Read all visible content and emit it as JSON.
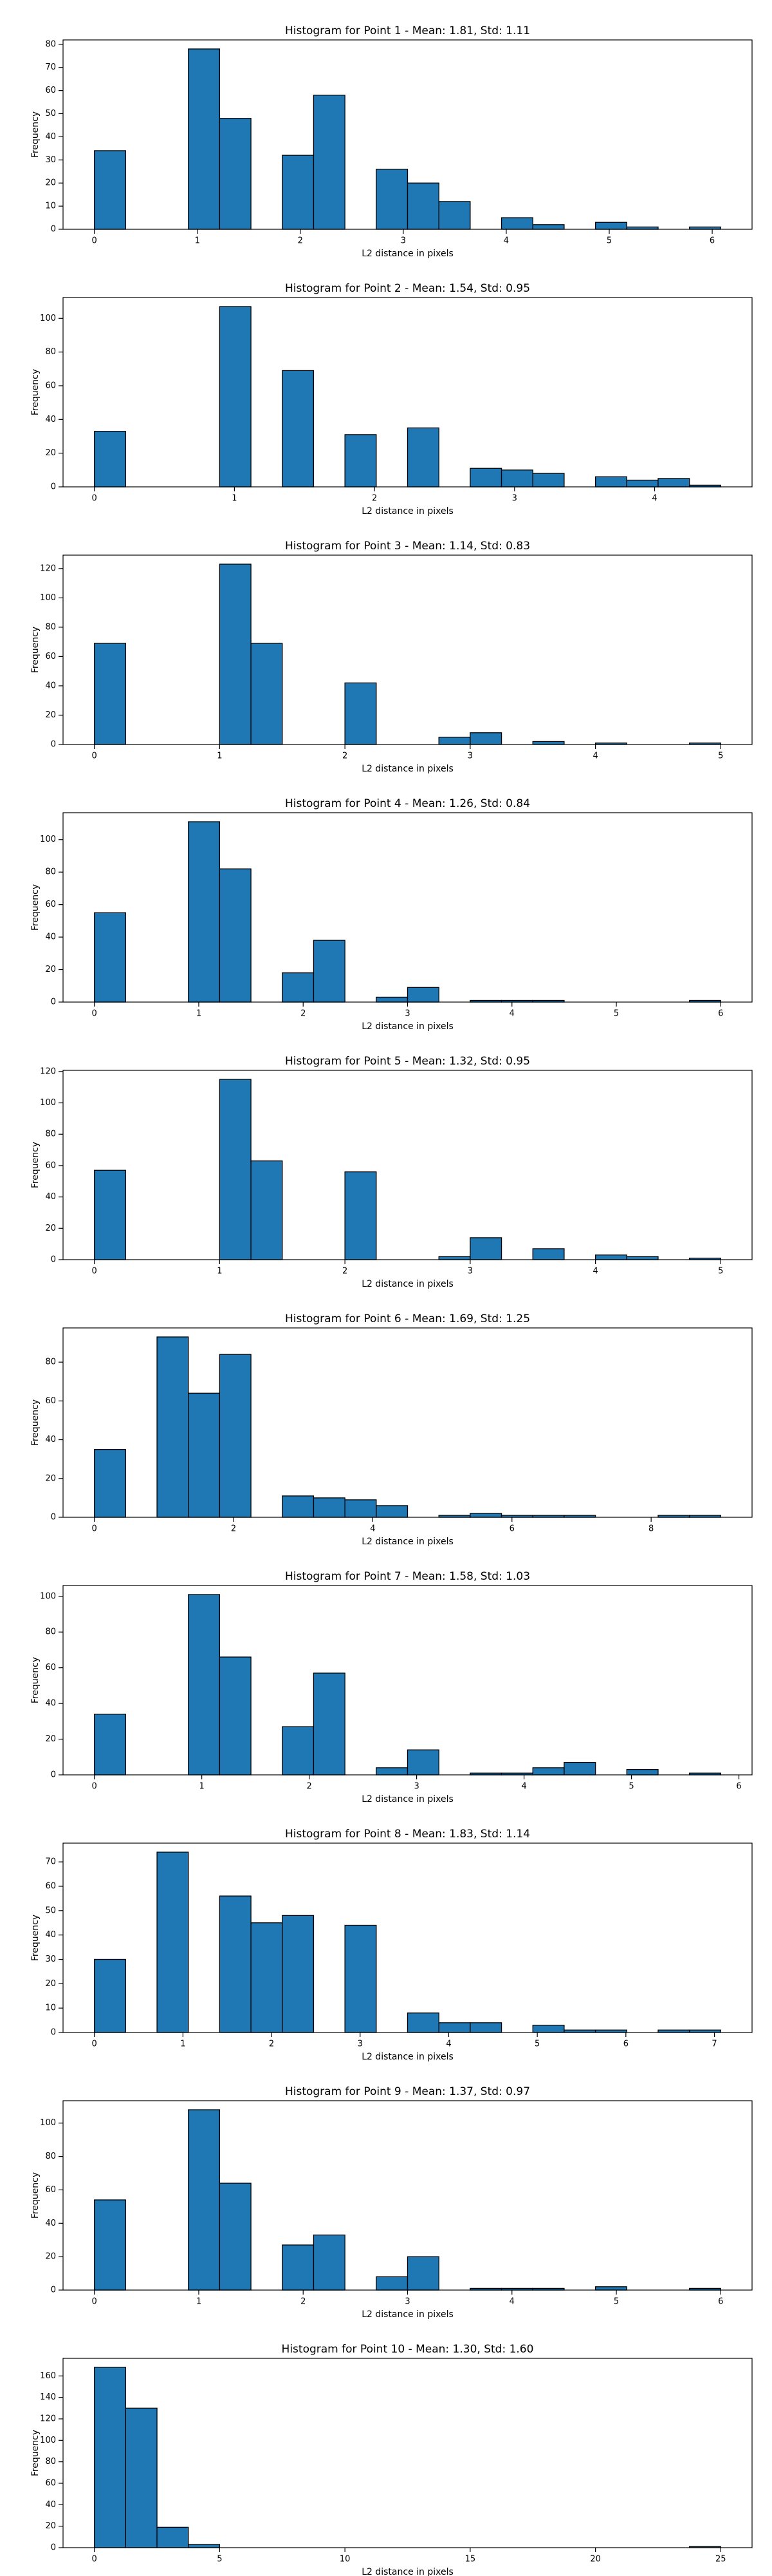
{
  "chart_data": [
    {
      "type": "histogram",
      "title": "Histogram for Point 1 - Mean: 1.81, Std: 1.11",
      "x_label": "L2 distance in pixels",
      "y_label": "Frequency",
      "color": "#1f77b4",
      "edge_color": "#000000",
      "bins": [
        0,
        0.3041,
        0.6083,
        0.9124,
        1.2166,
        1.5207,
        1.8248,
        2.129,
        2.4331,
        2.7373,
        3.0414,
        3.3455,
        3.6497,
        3.9538,
        4.258,
        4.5621,
        4.8662,
        5.1704,
        5.4745,
        5.7787,
        6.0828
      ],
      "values": [
        34,
        0,
        0,
        78,
        48,
        0,
        32,
        58,
        0,
        26,
        20,
        12,
        0,
        5,
        2,
        0,
        3,
        1,
        0,
        1
      ],
      "xlim": [
        -0.3041,
        6.3869
      ],
      "xticks": [
        0,
        1,
        2,
        3,
        4,
        5,
        6
      ],
      "ylim": [
        0,
        81.9
      ],
      "yticks": [
        0,
        10,
        20,
        30,
        40,
        50,
        60,
        70,
        80
      ]
    },
    {
      "type": "histogram",
      "title": "Histogram for Point 2 - Mean: 1.54, Std: 0.95",
      "x_label": "L2 distance in pixels",
      "y_label": "Frequency",
      "color": "#1f77b4",
      "edge_color": "#000000",
      "bins": [
        0,
        0.2236,
        0.4472,
        0.6708,
        0.8944,
        1.118,
        1.3416,
        1.5652,
        1.7889,
        2.0125,
        2.2361,
        2.4597,
        2.6833,
        2.9069,
        3.1305,
        3.3541,
        3.5777,
        3.8013,
        4.0249,
        4.2485,
        4.4721
      ],
      "values": [
        33,
        0,
        0,
        0,
        107,
        0,
        69,
        0,
        31,
        0,
        35,
        0,
        11,
        10,
        8,
        0,
        6,
        4,
        5,
        1
      ],
      "xlim": [
        -0.2236,
        4.6957
      ],
      "xticks": [
        0,
        1,
        2,
        3,
        4
      ],
      "ylim": [
        0,
        112.35
      ],
      "yticks": [
        0,
        20,
        40,
        60,
        80,
        100
      ]
    },
    {
      "type": "histogram",
      "title": "Histogram for Point 3 - Mean: 1.14, Std: 0.83",
      "x_label": "L2 distance in pixels",
      "y_label": "Frequency",
      "color": "#1f77b4",
      "edge_color": "#000000",
      "bins": [
        0,
        0.25,
        0.5,
        0.75,
        1,
        1.25,
        1.5,
        1.75,
        2,
        2.25,
        2.5,
        2.75,
        3,
        3.25,
        3.5,
        3.75,
        4,
        4.25,
        4.5,
        4.75,
        5
      ],
      "values": [
        69,
        0,
        0,
        0,
        123,
        69,
        0,
        0,
        42,
        0,
        0,
        5,
        8,
        0,
        2,
        0,
        1,
        0,
        0,
        1
      ],
      "xlim": [
        -0.25,
        5.25
      ],
      "xticks": [
        0,
        1,
        2,
        3,
        4,
        5
      ],
      "ylim": [
        0,
        129.15
      ],
      "yticks": [
        0,
        20,
        40,
        60,
        80,
        100,
        120
      ]
    },
    {
      "type": "histogram",
      "title": "Histogram for Point 4 - Mean: 1.26, Std: 0.84",
      "x_label": "L2 distance in pixels",
      "y_label": "Frequency",
      "color": "#1f77b4",
      "edge_color": "#000000",
      "bins": [
        0,
        0.3,
        0.6,
        0.9,
        1.2,
        1.5,
        1.8,
        2.1,
        2.4,
        2.7,
        3,
        3.3,
        3.6,
        3.9,
        4.2,
        4.5,
        4.8,
        5.1,
        5.4,
        5.7,
        6
      ],
      "values": [
        55,
        0,
        0,
        111,
        82,
        0,
        18,
        38,
        0,
        3,
        9,
        0,
        1,
        1,
        1,
        0,
        0,
        0,
        0,
        1
      ],
      "xlim": [
        -0.3,
        6.3
      ],
      "xticks": [
        0,
        1,
        2,
        3,
        4,
        5,
        6
      ],
      "ylim": [
        0,
        116.55
      ],
      "yticks": [
        0,
        20,
        40,
        60,
        80,
        100
      ]
    },
    {
      "type": "histogram",
      "title": "Histogram for Point 5 - Mean: 1.32, Std: 0.95",
      "x_label": "L2 distance in pixels",
      "y_label": "Frequency",
      "color": "#1f77b4",
      "edge_color": "#000000",
      "bins": [
        0,
        0.25,
        0.5,
        0.75,
        1,
        1.25,
        1.5,
        1.75,
        2,
        2.25,
        2.5,
        2.75,
        3,
        3.25,
        3.5,
        3.75,
        4,
        4.25,
        4.5,
        4.75,
        5
      ],
      "values": [
        57,
        0,
        0,
        0,
        115,
        63,
        0,
        0,
        56,
        0,
        0,
        2,
        14,
        0,
        7,
        0,
        3,
        2,
        0,
        1
      ],
      "xlim": [
        -0.25,
        5.25
      ],
      "xticks": [
        0,
        1,
        2,
        3,
        4,
        5
      ],
      "ylim": [
        0,
        120.75
      ],
      "yticks": [
        0,
        20,
        40,
        60,
        80,
        100,
        120
      ]
    },
    {
      "type": "histogram",
      "title": "Histogram for Point 6 - Mean: 1.69, Std: 1.25",
      "x_label": "L2 distance in pixels",
      "y_label": "Frequency",
      "color": "#1f77b4",
      "edge_color": "#000000",
      "bins": [
        0,
        0.45,
        0.9,
        1.35,
        1.8,
        2.25,
        2.7,
        3.15,
        3.6,
        4.05,
        4.5,
        4.95,
        5.4,
        5.85,
        6.3,
        6.75,
        7.2,
        7.65,
        8.1,
        8.55,
        9
      ],
      "values": [
        35,
        0,
        93,
        64,
        84,
        0,
        11,
        10,
        9,
        6,
        0,
        1,
        2,
        1,
        1,
        1,
        0,
        0,
        1,
        1
      ],
      "xlim": [
        -0.45,
        9.45
      ],
      "xticks": [
        0,
        2,
        4,
        6,
        8
      ],
      "ylim": [
        0,
        97.65
      ],
      "yticks": [
        0,
        20,
        40,
        60,
        80
      ]
    },
    {
      "type": "histogram",
      "title": "Histogram for Point 7 - Mean: 1.58, Std: 1.03",
      "x_label": "L2 distance in pixels",
      "y_label": "Frequency",
      "color": "#1f77b4",
      "edge_color": "#000000",
      "bins": [
        0,
        0.2915,
        0.5831,
        0.8746,
        1.1662,
        1.4577,
        1.7493,
        2.0408,
        2.3324,
        2.6239,
        2.9155,
        3.207,
        3.4986,
        3.7901,
        4.0817,
        4.3732,
        4.6648,
        4.9563,
        5.2479,
        5.5394,
        5.831
      ],
      "values": [
        34,
        0,
        0,
        101,
        66,
        0,
        27,
        57,
        0,
        4,
        14,
        0,
        1,
        1,
        4,
        7,
        0,
        3,
        0,
        1
      ],
      "xlim": [
        -0.2915,
        6.1225
      ],
      "xticks": [
        0,
        1,
        2,
        3,
        4,
        5,
        6
      ],
      "ylim": [
        0,
        106.05
      ],
      "yticks": [
        0,
        20,
        40,
        60,
        80,
        100
      ]
    },
    {
      "type": "histogram",
      "title": "Histogram for Point 8 - Mean: 1.83, Std: 1.14",
      "x_label": "L2 distance in pixels",
      "y_label": "Frequency",
      "color": "#1f77b4",
      "edge_color": "#000000",
      "bins": [
        0,
        0.3536,
        0.7071,
        1.0607,
        1.4142,
        1.7678,
        2.1213,
        2.4749,
        2.8284,
        3.182,
        3.5355,
        3.8891,
        4.2426,
        4.5962,
        4.9497,
        5.3033,
        5.6569,
        6.0104,
        6.364,
        6.7175,
        7.0711
      ],
      "values": [
        30,
        0,
        74,
        0,
        56,
        45,
        48,
        0,
        44,
        0,
        8,
        4,
        4,
        0,
        3,
        1,
        1,
        0,
        1,
        1
      ],
      "xlim": [
        -0.3536,
        7.4246
      ],
      "xticks": [
        0,
        1,
        2,
        3,
        4,
        5,
        6,
        7
      ],
      "ylim": [
        0,
        77.7
      ],
      "yticks": [
        0,
        10,
        20,
        30,
        40,
        50,
        60,
        70
      ]
    },
    {
      "type": "histogram",
      "title": "Histogram for Point 9 - Mean: 1.37, Std: 0.97",
      "x_label": "L2 distance in pixels",
      "y_label": "Frequency",
      "color": "#1f77b4",
      "edge_color": "#000000",
      "bins": [
        0,
        0.3,
        0.6,
        0.9,
        1.2,
        1.5,
        1.8,
        2.1,
        2.4,
        2.7,
        3,
        3.3,
        3.6,
        3.9,
        4.2,
        4.5,
        4.8,
        5.1,
        5.4,
        5.7,
        6
      ],
      "values": [
        54,
        0,
        0,
        108,
        64,
        0,
        27,
        33,
        0,
        8,
        20,
        0,
        1,
        1,
        1,
        0,
        2,
        0,
        0,
        1
      ],
      "xlim": [
        -0.3,
        6.3
      ],
      "xticks": [
        0,
        1,
        2,
        3,
        4,
        5,
        6
      ],
      "ylim": [
        0,
        113.4
      ],
      "yticks": [
        0,
        20,
        40,
        60,
        80,
        100
      ]
    },
    {
      "type": "histogram",
      "title": "Histogram for Point 10 - Mean: 1.30, Std: 1.60",
      "x_label": "L2 distance in pixels",
      "y_label": "Frequency",
      "color": "#1f77b4",
      "edge_color": "#000000",
      "bins": [
        0,
        1.25,
        2.5,
        3.75,
        5,
        6.25,
        7.5,
        8.75,
        10,
        11.25,
        12.5,
        13.75,
        15,
        16.25,
        17.5,
        18.75,
        20,
        21.25,
        22.5,
        23.75,
        25
      ],
      "values": [
        168,
        130,
        19,
        3,
        0,
        0,
        0,
        0,
        0,
        0,
        0,
        0,
        0,
        0,
        0,
        0,
        0,
        0,
        0,
        1
      ],
      "xlim": [
        -1.25,
        26.25
      ],
      "xticks": [
        0,
        5,
        10,
        15,
        20,
        25
      ],
      "ylim": [
        0,
        176.4
      ],
      "yticks": [
        0,
        20,
        40,
        60,
        80,
        100,
        120,
        140,
        160
      ]
    }
  ]
}
